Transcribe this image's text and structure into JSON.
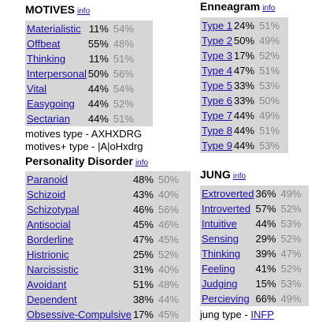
{
  "motives": {
    "title": "MOTIVES",
    "info": "info",
    "rows": [
      {
        "name": "Materialistic",
        "v1": "11%",
        "v2": "54%"
      },
      {
        "name": "Offbeat",
        "v1": "55%",
        "v2": "48%"
      },
      {
        "name": "Thinking",
        "v1": "11%",
        "v2": "51%"
      },
      {
        "name": "Interpersonal",
        "v1": "50%",
        "v2": "56%"
      },
      {
        "name": "Vital",
        "v1": "44%",
        "v2": "54%"
      },
      {
        "name": "Easygoing",
        "v1": "44%",
        "v2": "52%"
      },
      {
        "name": "Sectarian",
        "v1": "44%",
        "v2": "51%"
      }
    ],
    "type_line": "motives type - AXHXDRG",
    "type_plus_line": "motives+ type - |A|oHxdrg"
  },
  "enneagram": {
    "title": "Enneagram",
    "info": "info",
    "rows": [
      {
        "name": "Type 1",
        "v1": "24%",
        "v2": "51%"
      },
      {
        "name": "Type 2",
        "v1": "50%",
        "v2": "49%"
      },
      {
        "name": "Type 3",
        "v1": "17%",
        "v2": "52%"
      },
      {
        "name": "Type 4",
        "v1": "47%",
        "v2": "51%"
      },
      {
        "name": "Type 5",
        "v1": "33%",
        "v2": "53%"
      },
      {
        "name": "Type 6",
        "v1": "33%",
        "v2": "50%"
      },
      {
        "name": "Type 7",
        "v1": "44%",
        "v2": "49%"
      },
      {
        "name": "Type 8",
        "v1": "44%",
        "v2": "51%"
      },
      {
        "name": "Type 9",
        "v1": "44%",
        "v2": "53%"
      }
    ]
  },
  "personality": {
    "title": "Personality Disorder",
    "info": "info",
    "rows": [
      {
        "name": "Paranoid",
        "v1": "48%",
        "v2": "50%"
      },
      {
        "name": "Schizoid",
        "v1": "43%",
        "v2": "40%"
      },
      {
        "name": "Schizotypal",
        "v1": "46%",
        "v2": "56%"
      },
      {
        "name": "Antisocial",
        "v1": "45%",
        "v2": "46%"
      },
      {
        "name": "Borderline",
        "v1": "47%",
        "v2": "45%"
      },
      {
        "name": "Histrionic",
        "v1": "25%",
        "v2": "52%"
      },
      {
        "name": "Narcissistic",
        "v1": "31%",
        "v2": "40%"
      },
      {
        "name": "Avoidant",
        "v1": "51%",
        "v2": "48%"
      },
      {
        "name": "Dependent",
        "v1": "38%",
        "v2": "44%"
      },
      {
        "name": "Obsessive-Compulsive",
        "v1": "17%",
        "v2": "45%"
      }
    ]
  },
  "jung": {
    "title": "JUNG",
    "info": "info",
    "rows": [
      {
        "name": "Extroverted",
        "v1": "36%",
        "v2": "49%"
      },
      {
        "name": "Introverted",
        "v1": "57%",
        "v2": "52%"
      },
      {
        "name": "Intuitive",
        "v1": "44%",
        "v2": "53%"
      },
      {
        "name": "Sensing",
        "v1": "29%",
        "v2": "52%"
      },
      {
        "name": "Thinking",
        "v1": "39%",
        "v2": "47%"
      },
      {
        "name": "Feeling",
        "v1": "41%",
        "v2": "52%"
      },
      {
        "name": "Judging",
        "v1": "15%",
        "v2": "53%"
      },
      {
        "name": "Percieving",
        "v1": "66%",
        "v2": "49%"
      }
    ],
    "type_prefix": "jung type - ",
    "type_value": "INFP"
  }
}
